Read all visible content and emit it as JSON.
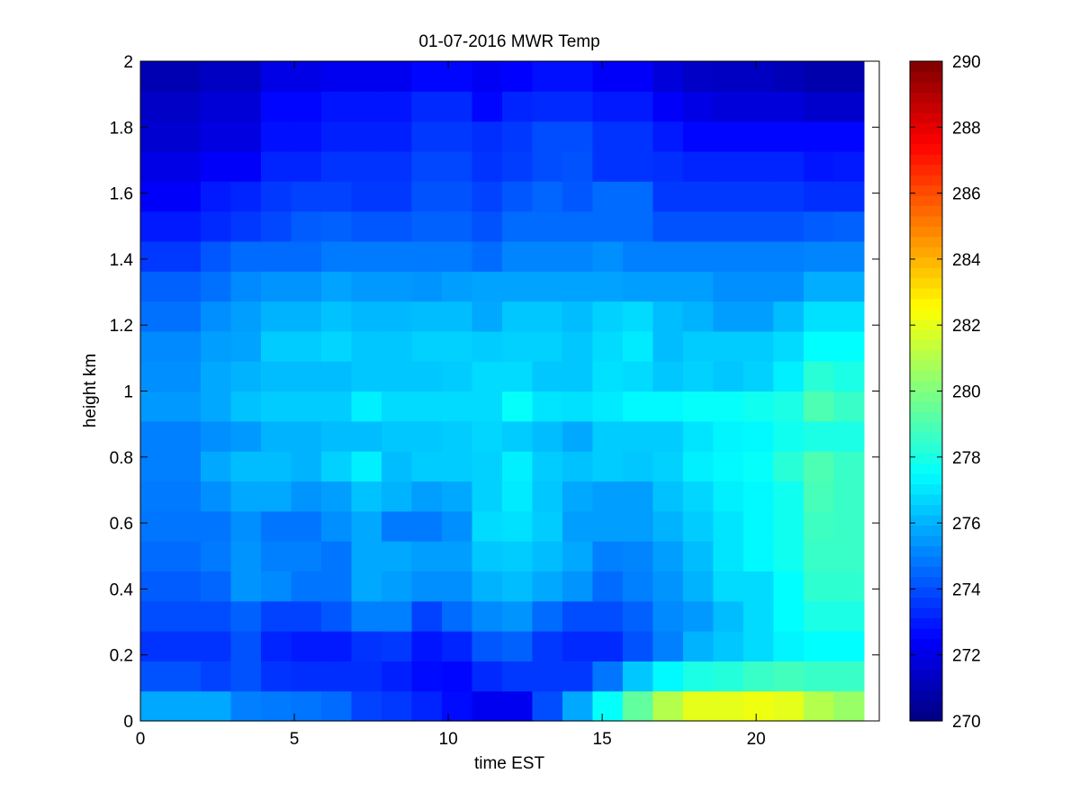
{
  "chart_data": {
    "type": "heatmap",
    "title": "01-07-2016 MWR Temp",
    "xlabel": "time EST",
    "ylabel": "height km",
    "xlim": [
      0,
      24
    ],
    "ylim": [
      0,
      2
    ],
    "x_ticks": [
      0,
      5,
      10,
      15,
      20
    ],
    "y_ticks": [
      0,
      0.2,
      0.4,
      0.6,
      0.8,
      1,
      1.2,
      1.4,
      1.6,
      1.8,
      2
    ],
    "grid": false,
    "colorbar": {
      "range": [
        270,
        290
      ],
      "ticks": [
        270,
        272,
        274,
        276,
        278,
        280,
        282,
        284,
        286,
        288,
        290
      ],
      "colormap": "jet"
    },
    "time_range": [
      0,
      23.5
    ],
    "time_step_hours": 1,
    "height_range_km": [
      0,
      2
    ],
    "values": [
      [
        275.8,
        275.8,
        275.8,
        275.0,
        274.9,
        274.8,
        274.6,
        273.8,
        273.6,
        273.2,
        272.7,
        272.2,
        272.2,
        274.0,
        275.8,
        277.6,
        279.4,
        281.0,
        282.0,
        282.0,
        282.2,
        282.0,
        281.0,
        280.5
      ],
      [
        274.1,
        274.1,
        273.8,
        274.1,
        273.5,
        273.4,
        273.4,
        273.4,
        273.1,
        272.7,
        272.6,
        273.3,
        273.6,
        273.6,
        273.6,
        274.8,
        276.4,
        277.4,
        278.0,
        278.2,
        278.6,
        278.8,
        278.6,
        278.6
      ],
      [
        273.5,
        273.5,
        273.5,
        274.1,
        273.2,
        273.0,
        273.0,
        273.5,
        273.6,
        272.9,
        273.2,
        274.2,
        274.4,
        273.6,
        273.3,
        273.3,
        274.1,
        275.0,
        276.0,
        276.4,
        276.8,
        277.3,
        277.5,
        277.5
      ],
      [
        274.0,
        274.0,
        274.0,
        274.4,
        273.8,
        273.8,
        274.2,
        275.0,
        275.0,
        273.8,
        274.6,
        275.2,
        275.4,
        274.6,
        274.0,
        274.0,
        274.4,
        275.2,
        275.5,
        276.2,
        276.8,
        277.5,
        278.0,
        278.0
      ],
      [
        274.3,
        274.3,
        274.5,
        275.4,
        275.2,
        274.8,
        274.8,
        275.8,
        275.6,
        275.3,
        275.3,
        276.0,
        276.2,
        275.8,
        275.4,
        274.6,
        275.0,
        275.4,
        276.0,
        276.8,
        276.8,
        277.5,
        278.4,
        278.4
      ],
      [
        274.6,
        274.6,
        274.9,
        275.4,
        275.0,
        275.0,
        274.8,
        275.8,
        275.8,
        275.6,
        275.6,
        276.4,
        276.5,
        276.2,
        275.8,
        275.0,
        275.1,
        275.6,
        276.2,
        277.0,
        277.4,
        277.8,
        278.6,
        278.6
      ],
      [
        274.8,
        274.8,
        274.8,
        275.3,
        274.8,
        274.8,
        275.3,
        275.8,
        274.9,
        274.9,
        275.3,
        276.8,
        276.9,
        276.5,
        275.6,
        275.6,
        275.6,
        276.0,
        276.5,
        277.0,
        277.4,
        277.8,
        278.7,
        278.6
      ],
      [
        274.9,
        274.9,
        275.3,
        275.8,
        275.8,
        275.4,
        275.6,
        276.3,
        276.0,
        275.6,
        275.8,
        276.6,
        277.1,
        276.4,
        275.8,
        275.6,
        275.6,
        276.3,
        276.7,
        277.2,
        277.4,
        277.8,
        278.9,
        278.6
      ],
      [
        275.0,
        275.0,
        275.8,
        276.2,
        276.2,
        276.0,
        276.6,
        277.2,
        276.2,
        276.5,
        276.5,
        276.6,
        277.2,
        276.5,
        276.3,
        276.5,
        276.4,
        276.6,
        277.2,
        277.4,
        277.6,
        278.3,
        279.0,
        278.6
      ],
      [
        275.0,
        275.0,
        275.3,
        275.5,
        276.0,
        276.0,
        276.2,
        276.2,
        276.4,
        276.4,
        276.5,
        276.7,
        276.5,
        276.2,
        275.8,
        276.5,
        276.5,
        276.5,
        277.0,
        277.3,
        277.4,
        277.8,
        278.0,
        278.0
      ],
      [
        275.5,
        275.5,
        275.8,
        276.3,
        276.5,
        276.5,
        276.5,
        277.2,
        276.8,
        276.8,
        276.8,
        276.8,
        277.6,
        277.0,
        276.9,
        277.1,
        277.4,
        277.4,
        277.6,
        277.6,
        277.8,
        278.0,
        279.0,
        278.6
      ],
      [
        275.3,
        275.3,
        275.8,
        276.0,
        276.2,
        276.2,
        276.2,
        276.4,
        276.4,
        276.4,
        276.5,
        276.8,
        276.8,
        276.4,
        276.4,
        276.9,
        276.8,
        276.4,
        276.6,
        276.4,
        276.6,
        277.2,
        278.3,
        278.0
      ],
      [
        275.2,
        275.2,
        275.6,
        275.7,
        276.5,
        276.5,
        276.7,
        276.4,
        276.4,
        276.6,
        276.6,
        276.5,
        276.6,
        276.6,
        276.4,
        276.8,
        277.1,
        276.2,
        276.5,
        276.5,
        276.5,
        276.8,
        277.5,
        277.5
      ],
      [
        274.7,
        274.7,
        275.3,
        275.6,
        276.0,
        276.0,
        276.3,
        276.1,
        276.1,
        276.2,
        276.2,
        275.8,
        276.4,
        276.4,
        276.2,
        276.6,
        276.8,
        276.2,
        276.0,
        275.6,
        275.6,
        276.2,
        276.9,
        276.9
      ],
      [
        274.4,
        274.4,
        274.7,
        275.2,
        275.4,
        275.4,
        275.7,
        275.5,
        275.5,
        275.4,
        275.6,
        275.7,
        275.7,
        275.7,
        275.7,
        275.7,
        275.6,
        275.6,
        275.6,
        275.3,
        275.3,
        275.3,
        275.9,
        275.9
      ],
      [
        273.6,
        273.6,
        274.2,
        274.6,
        274.6,
        274.6,
        274.9,
        274.9,
        274.9,
        274.9,
        274.9,
        274.6,
        275.1,
        275.1,
        275.1,
        275.3,
        275.0,
        275.0,
        275.0,
        275.0,
        275.0,
        275.0,
        275.1,
        275.1
      ],
      [
        273.0,
        273.0,
        273.3,
        273.6,
        273.9,
        274.3,
        274.4,
        274.2,
        274.2,
        274.4,
        274.4,
        274.1,
        274.6,
        274.6,
        274.6,
        274.6,
        274.6,
        274.1,
        274.1,
        274.1,
        274.1,
        274.1,
        274.3,
        274.4
      ],
      [
        272.4,
        272.4,
        273.0,
        273.2,
        273.6,
        273.8,
        273.8,
        273.6,
        273.6,
        274.1,
        274.1,
        273.8,
        274.2,
        274.5,
        274.2,
        274.6,
        274.6,
        273.6,
        273.6,
        273.6,
        273.6,
        273.6,
        273.4,
        273.4
      ],
      [
        272.0,
        272.0,
        272.4,
        272.4,
        273.2,
        273.2,
        273.5,
        273.5,
        273.5,
        273.9,
        273.9,
        273.5,
        273.7,
        274.0,
        274.1,
        273.5,
        273.5,
        273.4,
        273.2,
        273.2,
        273.2,
        273.2,
        272.9,
        273.0
      ],
      [
        271.6,
        271.6,
        271.9,
        271.9,
        272.8,
        272.8,
        273.1,
        273.1,
        273.1,
        273.6,
        273.6,
        273.4,
        273.6,
        274.0,
        274.0,
        273.5,
        273.5,
        273.0,
        272.6,
        272.6,
        272.6,
        272.6,
        272.6,
        272.6
      ],
      [
        271.4,
        271.4,
        271.7,
        271.7,
        272.6,
        272.6,
        272.9,
        272.9,
        272.9,
        273.3,
        273.3,
        272.6,
        273.2,
        273.3,
        273.3,
        273.0,
        273.0,
        272.4,
        272.0,
        271.8,
        271.8,
        271.8,
        271.5,
        271.5
      ],
      [
        271.0,
        271.0,
        271.3,
        271.3,
        272.0,
        272.0,
        272.2,
        272.2,
        272.2,
        272.6,
        272.6,
        272.3,
        272.5,
        272.8,
        272.8,
        272.4,
        272.4,
        271.8,
        271.4,
        271.3,
        271.3,
        271.1,
        270.9,
        270.9
      ]
    ]
  }
}
